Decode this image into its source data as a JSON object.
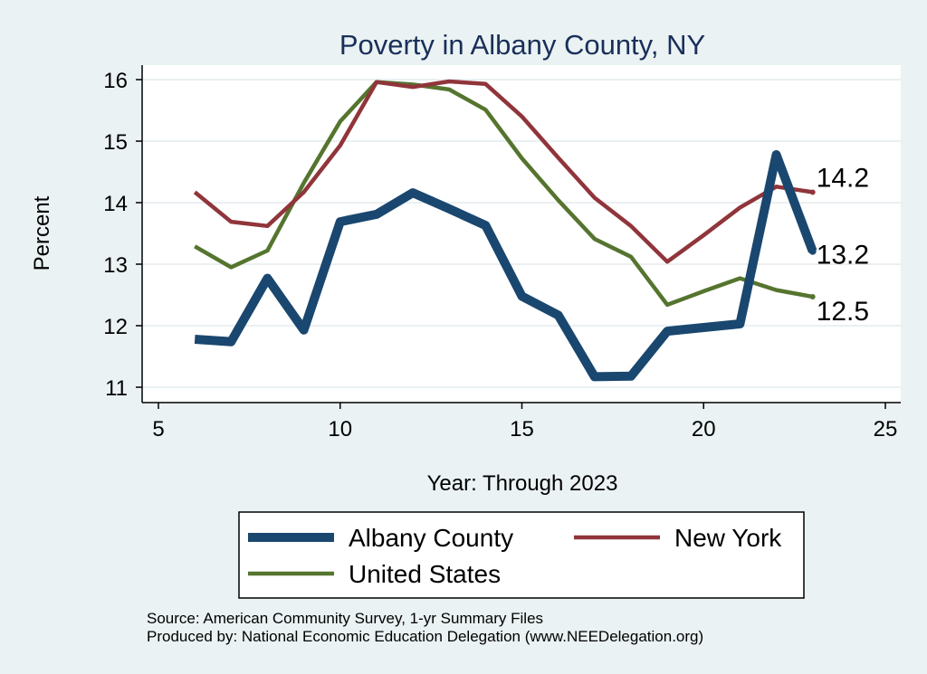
{
  "chart_data": {
    "type": "line",
    "title": "Poverty in Albany County, NY",
    "xlabel": "Year: Through 2023",
    "ylabel": "Percent",
    "xlim": [
      5,
      25
    ],
    "ylim": [
      10.85,
      16.2
    ],
    "xticks": [
      5,
      10,
      15,
      20,
      25
    ],
    "yticks": [
      11,
      12,
      13,
      14,
      15,
      16
    ],
    "grid": true,
    "legend_position": "bottom",
    "series": [
      {
        "name": "Albany County",
        "color": "#1a476f",
        "thickness": "thick",
        "end_label": "13.2",
        "x": [
          6,
          7,
          8,
          9,
          10,
          11,
          12,
          13,
          14,
          15,
          16,
          17,
          18,
          19,
          20,
          21,
          22,
          23
        ],
        "values": [
          11.78,
          11.74,
          12.77,
          11.93,
          13.69,
          13.81,
          14.16,
          13.9,
          13.63,
          12.48,
          12.17,
          11.17,
          11.18,
          11.91,
          11.97,
          12.03,
          14.78,
          13.21
        ]
      },
      {
        "name": "New York",
        "color": "#90353b",
        "thickness": "medium",
        "end_label": "14.2",
        "x": [
          6,
          7,
          8,
          9,
          10,
          11,
          12,
          13,
          14,
          15,
          16,
          17,
          18,
          19,
          20,
          21,
          22,
          23
        ],
        "values": [
          14.17,
          13.69,
          13.62,
          14.17,
          14.93,
          15.96,
          15.88,
          15.97,
          15.93,
          15.4,
          14.73,
          14.08,
          13.62,
          13.04,
          13.47,
          13.92,
          14.26,
          14.17
        ]
      },
      {
        "name": "United States",
        "color": "#55752f",
        "thickness": "medium",
        "end_label": "12.5",
        "x": [
          6,
          7,
          8,
          9,
          10,
          11,
          12,
          13,
          14,
          15,
          16,
          17,
          18,
          19,
          20,
          21,
          22,
          23
        ],
        "values": [
          13.29,
          12.95,
          13.22,
          14.32,
          15.32,
          15.96,
          15.92,
          15.84,
          15.51,
          14.72,
          14.04,
          13.41,
          13.12,
          12.34,
          12.56,
          12.77,
          12.58,
          12.47
        ]
      }
    ]
  },
  "footer": {
    "source": "Source: American Community Survey, 1-yr Summary Files",
    "produced": "Produced by: National Economic Education Delegation (www.NEEDelegation.org)"
  }
}
